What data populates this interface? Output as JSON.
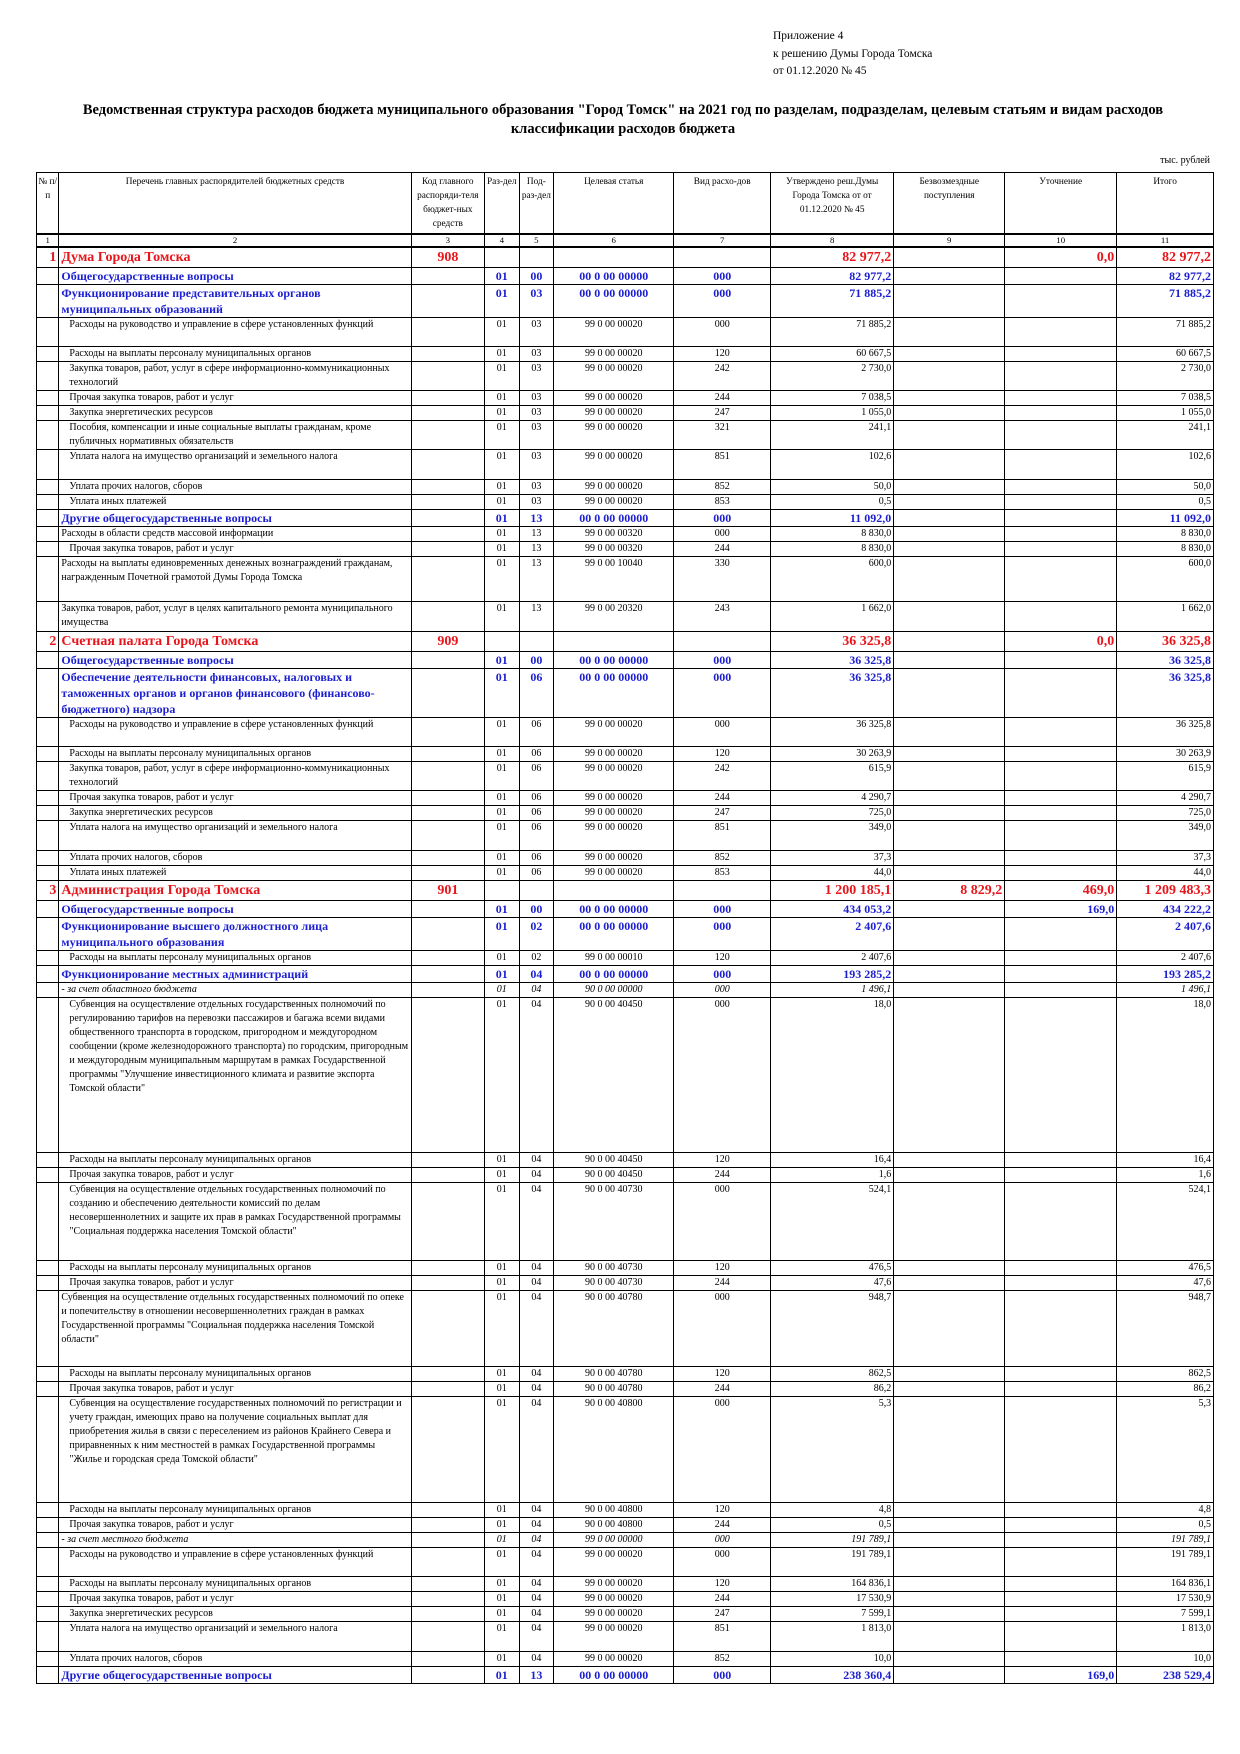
{
  "appendix": {
    "line1": "Приложение 4",
    "line2": "к решению Думы Города Томска",
    "line3": "от 01.12.2020 № 45"
  },
  "title": "Ведомственная структура расходов бюджета муниципального образования \"Город Томск\" на 2021 год по разделам, подразделам, целевым статьям и видам расходов классификации расходов бюджета",
  "units": "тыс. рублей",
  "columns": [
    "№ п/п",
    "Перечень главных распорядителей бюджетных средств",
    "Код главного распоряди-теля бюджет-ных средств",
    "Раз-дел",
    "Под-раз-дел",
    "Целевая статья",
    "Вид расхо-дов",
    "Утверждено реш.Думы Города Томска от от 01.12.2020 № 45",
    "Безвозмездные поступления",
    "Уточнение",
    "Итого"
  ],
  "column_numbers": [
    "1",
    "2",
    "3",
    "4",
    "5",
    "6",
    "7",
    "8",
    "9",
    "10",
    "11"
  ],
  "rows": [
    {
      "kind": "org",
      "h": 20,
      "no": "1",
      "name": "Дума Города Томска",
      "code": "908",
      "r": "",
      "p": "",
      "cs": "",
      "vr": "",
      "appr": "82 977,2",
      "grant": "",
      "corr": "0,0",
      "total": "82 977,2"
    },
    {
      "kind": "sec",
      "h": 16,
      "name": "Общегосударственные вопросы",
      "r": "01",
      "p": "00",
      "cs": "00 0 00 00000",
      "vr": "000",
      "appr": "82 977,2",
      "total": "82 977,2"
    },
    {
      "kind": "sec",
      "h": 31,
      "name": "Функционирование представительных органов муниципальных образований",
      "r": "01",
      "p": "03",
      "cs": "00 0 00 00000",
      "vr": "000",
      "appr": "71 885,2",
      "total": "71 885,2"
    },
    {
      "kind": "item",
      "ind": 1,
      "h": 29,
      "name": "Расходы на руководство и управление в сфере установленных функций",
      "r": "01",
      "p": "03",
      "cs": "99 0 00 00020",
      "vr": "000",
      "appr": "71 885,2",
      "total": "71 885,2"
    },
    {
      "kind": "item",
      "ind": 1,
      "h": 15,
      "name": "Расходы на выплаты персоналу муниципальных органов",
      "r": "01",
      "p": "03",
      "cs": "99 0 00 00020",
      "vr": "120",
      "appr": "60 667,5",
      "total": "60 667,5"
    },
    {
      "kind": "item",
      "ind": 1,
      "h": 29,
      "name": "Закупка товаров, работ, услуг в сфере информационно-коммуникационных технологий",
      "r": "01",
      "p": "03",
      "cs": "99 0 00 00020",
      "vr": "242",
      "appr": "2 730,0",
      "total": "2 730,0"
    },
    {
      "kind": "item",
      "ind": 1,
      "h": 15,
      "name": "Прочая закупка товаров, работ и услуг",
      "r": "01",
      "p": "03",
      "cs": "99 0 00 00020",
      "vr": "244",
      "appr": "7 038,5",
      "total": "7 038,5"
    },
    {
      "kind": "item",
      "ind": 1,
      "h": 15,
      "name": "Закупка энергетических ресурсов",
      "r": "01",
      "p": "03",
      "cs": "99 0 00 00020",
      "vr": "247",
      "appr": "1 055,0",
      "total": "1 055,0"
    },
    {
      "kind": "item",
      "ind": 1,
      "h": 29,
      "name": "Пособия, компенсации и иные социальные выплаты гражданам, кроме публичных нормативных обязательств",
      "r": "01",
      "p": "03",
      "cs": "99 0 00 00020",
      "vr": "321",
      "appr": "241,1",
      "total": "241,1"
    },
    {
      "kind": "item",
      "ind": 1,
      "h": 30,
      "name": "Уплата налога на имущество организаций и земельного налога",
      "r": "01",
      "p": "03",
      "cs": "99 0 00 00020",
      "vr": "851",
      "appr": "102,6",
      "total": "102,6"
    },
    {
      "kind": "item",
      "ind": 1,
      "h": 15,
      "name": "Уплата прочих налогов, сборов",
      "r": "01",
      "p": "03",
      "cs": "99 0 00 00020",
      "vr": "852",
      "appr": "50,0",
      "total": "50,0"
    },
    {
      "kind": "item",
      "ind": 1,
      "h": 15,
      "name": "Уплата иных платежей",
      "r": "01",
      "p": "03",
      "cs": "99 0 00 00020",
      "vr": "853",
      "appr": "0,5",
      "total": "0,5"
    },
    {
      "kind": "sec",
      "h": 15,
      "name": "Другие общегосударственные вопросы",
      "r": "01",
      "p": "13",
      "cs": "00 0 00 00000",
      "vr": "000",
      "appr": "11 092,0",
      "total": "11 092,0"
    },
    {
      "kind": "item",
      "ind": 0,
      "h": 15,
      "name": "Расходы в области средств массовой информации",
      "r": "01",
      "p": "13",
      "cs": "99 0 00 00320",
      "vr": "000",
      "appr": "8 830,0",
      "total": "8 830,0"
    },
    {
      "kind": "item",
      "ind": 1,
      "h": 15,
      "name": "Прочая закупка товаров, работ и услуг",
      "r": "01",
      "p": "13",
      "cs": "99 0 00 00320",
      "vr": "244",
      "appr": "8 830,0",
      "total": "8 830,0"
    },
    {
      "kind": "item",
      "ind": 0,
      "h": 45,
      "name": "Расходы на выплаты единовременных денежных вознаграждений гражданам, награжденным Почетной грамотой Думы Города Томска",
      "r": "01",
      "p": "13",
      "cs": "99 0 00 10040",
      "vr": "330",
      "appr": "600,0",
      "total": "600,0"
    },
    {
      "kind": "item",
      "ind": 0,
      "h": 30,
      "name": "Закупка товаров, работ, услуг в целях капитального ремонта муниципального имущества",
      "r": "01",
      "p": "13",
      "cs": "99 0 00 20320",
      "vr": "243",
      "appr": "1 662,0",
      "total": "1 662,0"
    },
    {
      "kind": "org",
      "h": 20,
      "no": "2",
      "name": "Счетная палата Города Томска",
      "code": "909",
      "appr": "36 325,8",
      "corr": "0,0",
      "total": "36 325,8"
    },
    {
      "kind": "sec",
      "h": 16,
      "name": "Общегосударственные вопросы",
      "r": "01",
      "p": "00",
      "cs": "00 0 00 00000",
      "vr": "000",
      "appr": "36 325,8",
      "total": "36 325,8"
    },
    {
      "kind": "sec",
      "h": 47,
      "name": "Обеспечение деятельности финансовых, налоговых и таможенных органов и органов финансового (финансово-бюджетного) надзора",
      "r": "01",
      "p": "06",
      "cs": "00 0 00 00000",
      "vr": "000",
      "appr": "36 325,8",
      "total": "36 325,8"
    },
    {
      "kind": "item",
      "ind": 1,
      "h": 29,
      "name": "Расходы на руководство и управление в сфере установленных функций",
      "r": "01",
      "p": "06",
      "cs": "99 0 00 00020",
      "vr": "000",
      "appr": "36 325,8",
      "total": "36 325,8"
    },
    {
      "kind": "item",
      "ind": 1,
      "h": 15,
      "name": "Расходы на выплаты персоналу муниципальных органов",
      "r": "01",
      "p": "06",
      "cs": "99 0 00 00020",
      "vr": "120",
      "appr": "30 263,9",
      "total": "30 263,9"
    },
    {
      "kind": "item",
      "ind": 1,
      "h": 29,
      "name": "Закупка товаров, работ, услуг в сфере информационно-коммуникационных технологий",
      "r": "01",
      "p": "06",
      "cs": "99 0 00 00020",
      "vr": "242",
      "appr": "615,9",
      "total": "615,9"
    },
    {
      "kind": "item",
      "ind": 1,
      "h": 15,
      "name": "Прочая закупка товаров, работ и услуг",
      "r": "01",
      "p": "06",
      "cs": "99 0 00 00020",
      "vr": "244",
      "appr": "4 290,7",
      "total": "4 290,7"
    },
    {
      "kind": "item",
      "ind": 1,
      "h": 15,
      "name": "Закупка энергетических ресурсов",
      "r": "01",
      "p": "06",
      "cs": "99 0 00 00020",
      "vr": "247",
      "appr": "725,0",
      "total": "725,0"
    },
    {
      "kind": "item",
      "ind": 1,
      "h": 30,
      "name": "Уплата налога на имущество организаций и земельного налога",
      "r": "01",
      "p": "06",
      "cs": "99 0 00 00020",
      "vr": "851",
      "appr": "349,0",
      "total": "349,0"
    },
    {
      "kind": "item",
      "ind": 1,
      "h": 15,
      "name": "Уплата прочих налогов, сборов",
      "r": "01",
      "p": "06",
      "cs": "99 0 00 00020",
      "vr": "852",
      "appr": "37,3",
      "total": "37,3"
    },
    {
      "kind": "item",
      "ind": 1,
      "h": 15,
      "name": "Уплата иных платежей",
      "r": "01",
      "p": "06",
      "cs": "99 0 00 00020",
      "vr": "853",
      "appr": "44,0",
      "total": "44,0"
    },
    {
      "kind": "org",
      "h": 20,
      "no": "3",
      "name": "Администрация Города Томска",
      "code": "901",
      "appr": "1 200 185,1",
      "grant": "8 829,2",
      "corr": "469,0",
      "total": "1 209 483,3"
    },
    {
      "kind": "sec",
      "h": 16,
      "name": "Общегосударственные вопросы",
      "r": "01",
      "p": "00",
      "cs": "00 0 00 00000",
      "vr": "000",
      "appr": "434 053,2",
      "corr": "169,0",
      "total": "434 222,2"
    },
    {
      "kind": "sec",
      "h": 31,
      "name": "Функционирование высшего должностного лица муниципального образования",
      "r": "01",
      "p": "02",
      "cs": "00 0 00 00000",
      "vr": "000",
      "appr": "2 407,6",
      "total": "2 407,6"
    },
    {
      "kind": "item",
      "ind": 1,
      "h": 15,
      "name": "Расходы на выплаты персоналу муниципальных органов",
      "r": "01",
      "p": "02",
      "cs": "99 0 00 00010",
      "vr": "120",
      "appr": "2 407,6",
      "total": "2 407,6"
    },
    {
      "kind": "sec",
      "h": 15,
      "name": "Функционирование местных администраций",
      "r": "01",
      "p": "04",
      "cs": "00 0 00 00000",
      "vr": "000",
      "appr": "193 285,2",
      "total": "193 285,2"
    },
    {
      "kind": "src",
      "h": 15,
      "name": "- за счет областного бюджета",
      "r": "01",
      "p": "04",
      "cs": "90 0 00 00000",
      "vr": "000",
      "appr": "1 496,1",
      "total": "1 496,1"
    },
    {
      "kind": "item",
      "ind": 1,
      "h": 155,
      "name": "Субвенция на осуществление отдельных государственных полномочий по регулированию тарифов на перевозки пассажиров и багажа всеми видами общественного транспорта в городском, пригородном и междугородном сообщении (кроме железнодорожного транспорта) по городским, пригородным и междугородным муниципальным маршрутам в рамках Государственной программы \"Улучшение инвестиционного климата и развитие экспорта Томской области\"",
      "r": "01",
      "p": "04",
      "cs": "90 0 00 40450",
      "vr": "000",
      "appr": "18,0",
      "total": "18,0"
    },
    {
      "kind": "item",
      "ind": 1,
      "h": 15,
      "name": "Расходы на выплаты персоналу муниципальных органов",
      "r": "01",
      "p": "04",
      "cs": "90 0 00 40450",
      "vr": "120",
      "appr": "16,4",
      "total": "16,4"
    },
    {
      "kind": "item",
      "ind": 1,
      "h": 15,
      "name": "Прочая закупка товаров, работ и услуг",
      "r": "01",
      "p": "04",
      "cs": "90 0 00 40450",
      "vr": "244",
      "appr": "1,6",
      "total": "1,6"
    },
    {
      "kind": "item",
      "ind": 1,
      "h": 78,
      "name": "Субвенция на осуществление отдельных государственных полномочий по созданию и обеспечению деятельности комиссий по делам несовершеннолетних и защите их прав в рамках Государственной программы \"Социальная поддержка населения Томской области\"",
      "r": "01",
      "p": "04",
      "cs": "90 0 00 40730",
      "vr": "000",
      "appr": "524,1",
      "total": "524,1"
    },
    {
      "kind": "item",
      "ind": 1,
      "h": 15,
      "name": "Расходы на выплаты персоналу муниципальных органов",
      "r": "01",
      "p": "04",
      "cs": "90 0 00 40730",
      "vr": "120",
      "appr": "476,5",
      "total": "476,5"
    },
    {
      "kind": "item",
      "ind": 1,
      "h": 15,
      "name": "Прочая закупка товаров, работ и услуг",
      "r": "01",
      "p": "04",
      "cs": "90 0 00 40730",
      "vr": "244",
      "appr": "47,6",
      "total": "47,6"
    },
    {
      "kind": "item",
      "ind": 0,
      "h": 76,
      "name": "Субвенция на осуществление отдельных государственных полномочий по опеке и попечительству в отношении несовершеннолетних граждан в рамках Государственной программы \"Социальная поддержка населения Томской области\"",
      "r": "01",
      "p": "04",
      "cs": "90 0 00 40780",
      "vr": "000",
      "appr": "948,7",
      "total": "948,7"
    },
    {
      "kind": "item",
      "ind": 1,
      "h": 15,
      "name": "Расходы на выплаты персоналу муниципальных органов",
      "r": "01",
      "p": "04",
      "cs": "90 0 00 40780",
      "vr": "120",
      "appr": "862,5",
      "total": "862,5"
    },
    {
      "kind": "item",
      "ind": 1,
      "h": 15,
      "name": "Прочая закупка товаров, работ и услуг",
      "r": "01",
      "p": "04",
      "cs": "90 0 00 40780",
      "vr": "244",
      "appr": "86,2",
      "total": "86,2"
    },
    {
      "kind": "item",
      "ind": 1,
      "h": 106,
      "name": "Субвенция на осуществление государственных полномочий по регистрации и учету граждан, имеющих право на получение социальных выплат для приобретения жилья в связи с переселением из районов Крайнего Севера и приравненных к ним местностей в рамках Государственной программы \"Жилье и городская среда Томской области\"",
      "r": "01",
      "p": "04",
      "cs": "90 0 00 40800",
      "vr": "000",
      "appr": "5,3",
      "total": "5,3"
    },
    {
      "kind": "item",
      "ind": 1,
      "h": 15,
      "name": "Расходы на выплаты персоналу муниципальных органов",
      "r": "01",
      "p": "04",
      "cs": "90 0 00 40800",
      "vr": "120",
      "appr": "4,8",
      "total": "4,8"
    },
    {
      "kind": "item",
      "ind": 1,
      "h": 15,
      "name": "Прочая закупка товаров, работ и услуг",
      "r": "01",
      "p": "04",
      "cs": "90 0 00 40800",
      "vr": "244",
      "appr": "0,5",
      "total": "0,5"
    },
    {
      "kind": "src",
      "h": 15,
      "name": "- за счет местного бюджета",
      "r": "01",
      "p": "04",
      "cs": "99 0 00 00000",
      "vr": "000",
      "appr": "191 789,1",
      "total": "191 789,1"
    },
    {
      "kind": "item",
      "ind": 1,
      "h": 29,
      "name": "Расходы на руководство и управление в сфере установленных функций",
      "r": "01",
      "p": "04",
      "cs": "99 0 00 00020",
      "vr": "000",
      "appr": "191 789,1",
      "total": "191 789,1"
    },
    {
      "kind": "item",
      "ind": 1,
      "h": 15,
      "name": "Расходы на выплаты персоналу муниципальных органов",
      "r": "01",
      "p": "04",
      "cs": "99 0 00 00020",
      "vr": "120",
      "appr": "164 836,1",
      "total": "164 836,1"
    },
    {
      "kind": "item",
      "ind": 1,
      "h": 15,
      "name": "Прочая закупка товаров, работ и услуг",
      "r": "01",
      "p": "04",
      "cs": "99 0 00 00020",
      "vr": "244",
      "appr": "17 530,9",
      "total": "17 530,9"
    },
    {
      "kind": "item",
      "ind": 1,
      "h": 15,
      "name": "Закупка энергетических ресурсов",
      "r": "01",
      "p": "04",
      "cs": "99 0 00 00020",
      "vr": "247",
      "appr": "7 599,1",
      "total": "7 599,1"
    },
    {
      "kind": "item",
      "ind": 1,
      "h": 30,
      "name": "Уплата налога на имущество организаций и земельного налога",
      "r": "01",
      "p": "04",
      "cs": "99 0 00 00020",
      "vr": "851",
      "appr": "1 813,0",
      "total": "1 813,0"
    },
    {
      "kind": "item",
      "ind": 1,
      "h": 15,
      "name": "Уплата прочих налогов, сборов",
      "r": "01",
      "p": "04",
      "cs": "99 0 00 00020",
      "vr": "852",
      "appr": "10,0",
      "total": "10,0"
    },
    {
      "kind": "sec",
      "h": 16,
      "name": "Другие общегосударственные вопросы",
      "r": "01",
      "p": "13",
      "cs": "00 0 00 00000",
      "vr": "000",
      "appr": "238 360,4",
      "corr": "169,0",
      "total": "238 529,4"
    }
  ]
}
